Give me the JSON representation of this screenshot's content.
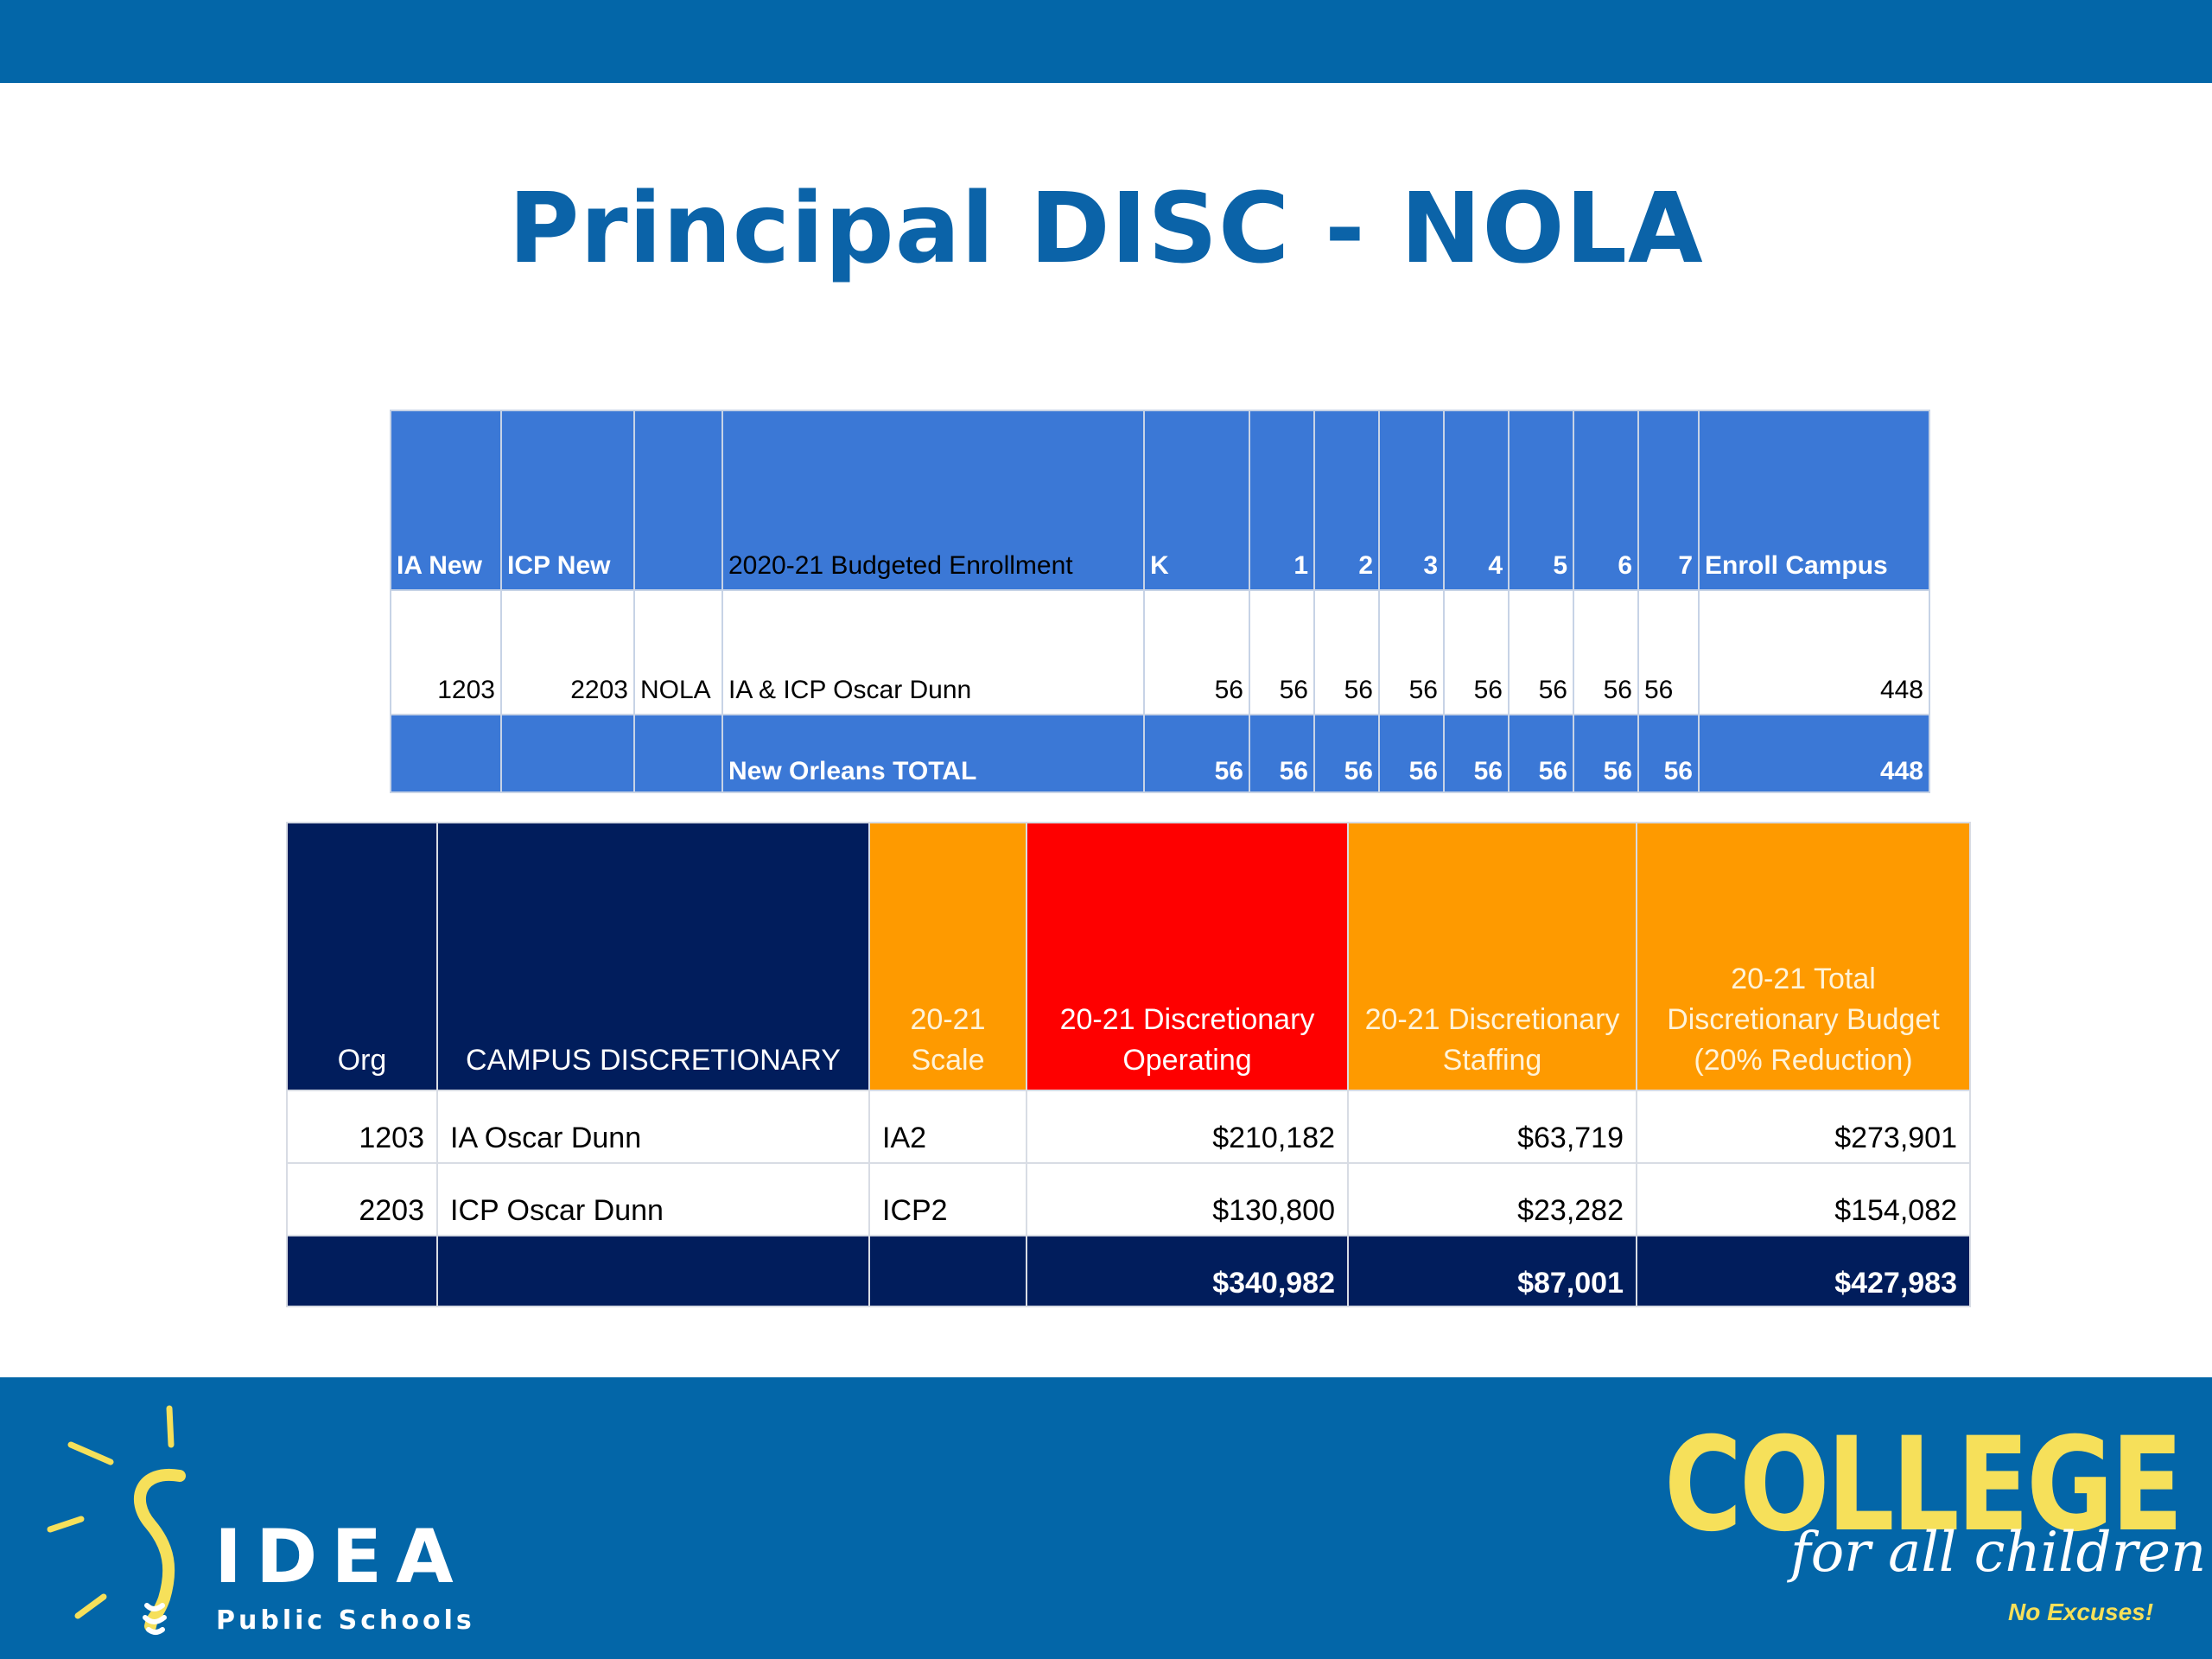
{
  "slide": {
    "title": "Principal DISC - NOLA"
  },
  "enrollment": {
    "headers": [
      "IA New",
      "ICP New",
      "",
      "2020-21 Budgeted Enrollment",
      "K",
      "1",
      "2",
      "3",
      "4",
      "5",
      "6",
      "7",
      "Enroll Campus"
    ],
    "row": [
      "1203",
      "2203",
      "NOLA",
      "IA & ICP Oscar Dunn",
      "56",
      "56",
      "56",
      "56",
      "56",
      "56",
      "56",
      "56",
      "448"
    ],
    "total": [
      "",
      "",
      "",
      "New Orleans TOTAL",
      "56",
      "56",
      "56",
      "56",
      "56",
      "56",
      "56",
      "56",
      "448"
    ]
  },
  "discretionary": {
    "headers": [
      "Org",
      "CAMPUS DISCRETIONARY",
      "20-21 Scale",
      "20-21 Discretionary Operating",
      "20-21 Discretionary Staffing",
      "20-21 Total Discretionary Budget (20% Reduction)"
    ],
    "header_colors": {
      "navy": "#011d5c",
      "orange": "#fe9a00",
      "red": "#fe0000"
    },
    "rows": [
      [
        "1203",
        "IA Oscar Dunn",
        "IA2",
        "$210,182",
        "$63,719",
        "$273,901"
      ],
      [
        "2203",
        "ICP Oscar Dunn",
        "ICP2",
        "$130,800",
        "$23,282",
        "$154,082"
      ]
    ],
    "total": [
      "",
      "",
      "",
      "$340,982",
      "$87,001",
      "$427,983"
    ]
  },
  "footer": {
    "logo_main": "IDEA",
    "logo_sub": "Public Schools",
    "slogan_main": "COLLEGE",
    "slogan_script": "for all children",
    "slogan_tag": "No Excuses!"
  }
}
